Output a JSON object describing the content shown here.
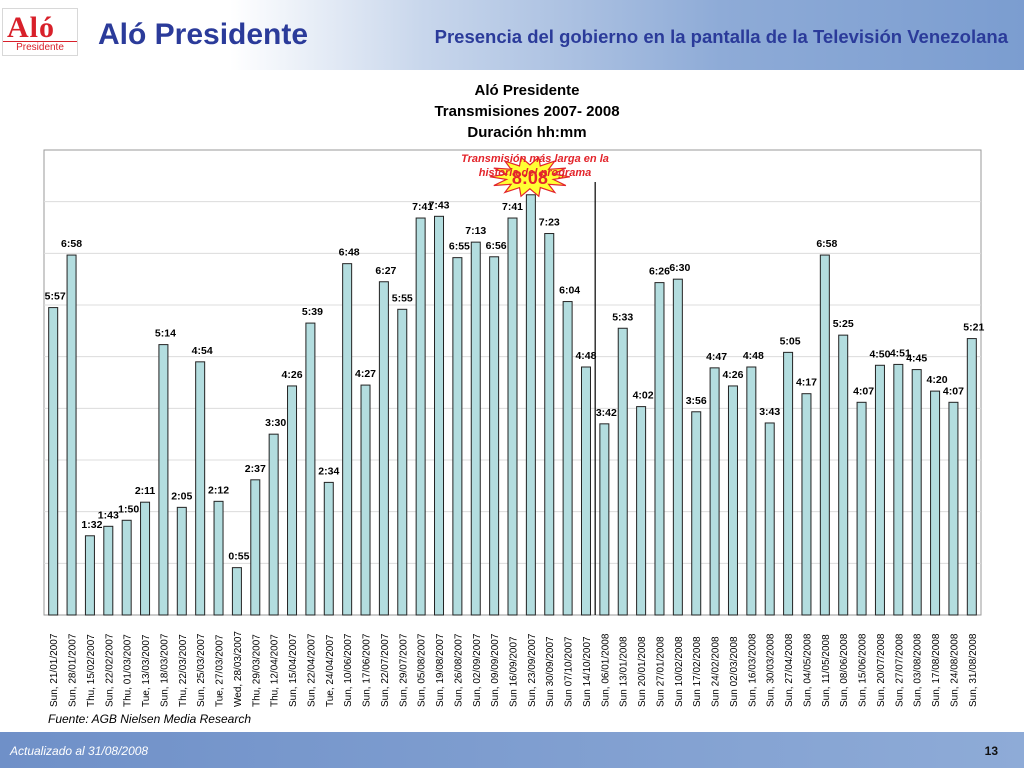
{
  "header": {
    "logo_text": "Aló",
    "logo_subtext": "Presidente",
    "title": "Aló Presidente",
    "subtitle": "Presencia del gobierno en la pantalla de la Televisión Venezolana"
  },
  "footer": {
    "source": "Fuente: AGB Nielsen Media Research",
    "updated": "Actualizado al 31/08/2008",
    "page_number": "13"
  },
  "chart_data": {
    "type": "bar",
    "title": "Aló Presidente",
    "subtitle": "Transmisiones 2007- 2008",
    "ylabel": "Duración hh:mm",
    "ylim_minutes": [
      0,
      540
    ],
    "grid": true,
    "bar_color": "#b3dddf",
    "annotation": {
      "text_line1": "Transmisión más larga en la",
      "text_line2": "historia del programa",
      "value_label": "8:08",
      "category": "Sun, 23/09/2007",
      "color": "#e3242b"
    },
    "divider_after": "Sun 14/10/2007",
    "categories": [
      "Sun, 21/01/2007",
      "Sun, 28/01/2007",
      "Thu, 15/02/2007",
      "Sun, 22/02/2007",
      "Thu, 01/03/2007",
      "Tue, 13/03/2007",
      "Sun, 18/03/2007",
      "Thu, 22/03/2007",
      "Sun, 25/03/2007",
      "Tue, 27/03/2007",
      "Wed, 28/03/2007",
      "Thu, 29/03/2007",
      "Thu, 12/04/2007",
      "Sun, 15/04/2007",
      "Sun, 22/04/2007",
      "Tue, 24/04/2007",
      "Sun, 10/06/2007",
      "Sun, 17/06/2007",
      "Sun, 22/07/2007",
      "Sun, 29/07/2007",
      "Sun, 05/08/2007",
      "Sun, 19/08/2007",
      "Sun, 26/08/2007",
      "Sun, 02/09/2007",
      "Sun, 09/09/2007",
      "Sun 16/09/2007",
      "Sun, 23/09/2007",
      "Sun 30/09/2007",
      "Sun 07/10/2007",
      "Sun 14/10/2007",
      "Sun, 06/01/2008",
      "Sun 13/01/2008",
      "Sun 20/01/2008",
      "Sun 27/01/2008",
      "Sun 10/02/2008",
      "Sun 17/02/2008",
      "Sun 24/02/2008",
      "Sun 02/03/2008",
      "Sun, 16/03/2008",
      "Sun, 30/03/2008",
      "Sun, 27/04/2008",
      "Sun, 04/05/2008",
      "Sun, 11/05/2008",
      "Sun, 08/06/2008",
      "Sun, 15/06/2008",
      "Sun, 20/07/2008",
      "Sun, 27/07/2008",
      "Sun, 03/08/2008",
      "Sun, 17/08/2008",
      "Sun, 24/08/2008",
      "Sun, 31/08/2008"
    ],
    "labels": [
      "5:57",
      "6:58",
      "1:32",
      "1:43",
      "1:50",
      "2:11",
      "5:14",
      "2:05",
      "4:54",
      "2:12",
      "0:55",
      "2:37",
      "3:30",
      "4:26",
      "5:39",
      "2:34",
      "6:48",
      "4:27",
      "6:27",
      "5:55",
      "7:41",
      "7:43",
      "6:55",
      "7:13",
      "6:56",
      "7:41",
      "8:08",
      "7:23",
      "6:04",
      "4:48",
      "3:42",
      "5:33",
      "4:02",
      "6:26",
      "6:30",
      "3:56",
      "4:47",
      "4:26",
      "4:48",
      "3:43",
      "5:05",
      "4:17",
      "6:58",
      "5:25",
      "4:07",
      "4:50",
      "4:51",
      "4:45",
      "4:20",
      "4:07",
      "5:21"
    ],
    "values_minutes": [
      357,
      418,
      92,
      103,
      110,
      131,
      314,
      125,
      294,
      132,
      55,
      157,
      210,
      266,
      339,
      154,
      408,
      267,
      387,
      355,
      461,
      463,
      415,
      433,
      416,
      461,
      488,
      443,
      364,
      288,
      222,
      333,
      242,
      386,
      390,
      236,
      287,
      266,
      288,
      223,
      305,
      257,
      418,
      325,
      247,
      290,
      291,
      285,
      260,
      247,
      321
    ]
  }
}
